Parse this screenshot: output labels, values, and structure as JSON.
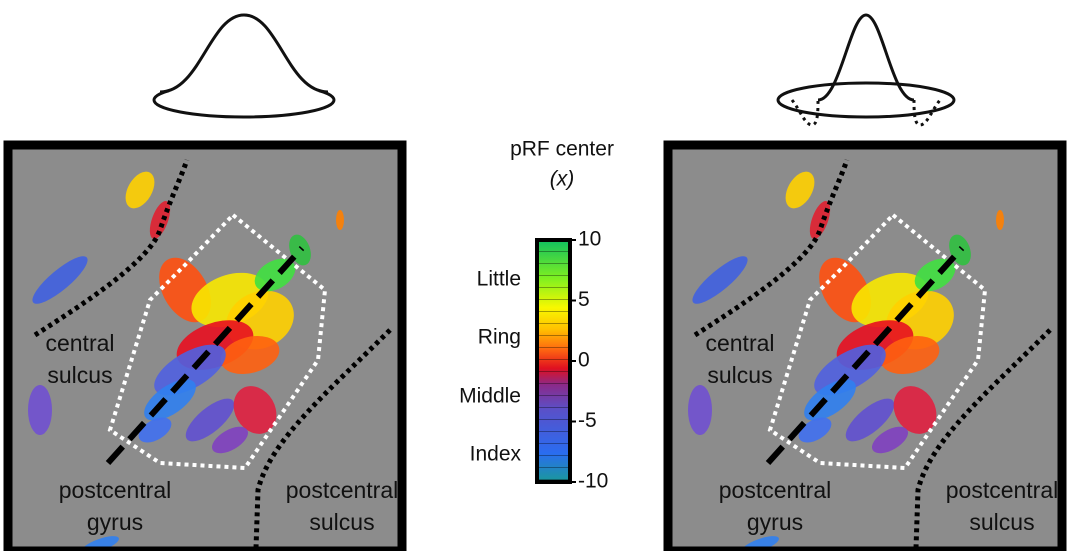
{
  "colorbar": {
    "title": "pRF center",
    "subtitle": "(x)",
    "lim": [
      -10,
      10
    ],
    "ticks": [
      10,
      5,
      0,
      -5,
      -10
    ],
    "fingers": [
      "Little",
      "Ring",
      "Middle",
      "Index"
    ]
  },
  "panels": [
    {
      "central_sulcus": [
        "central",
        "sulcus"
      ],
      "postcentral_gyrus": [
        "postcentral",
        "gyrus"
      ],
      "postcentral_sulcus": [
        "postcentral",
        "sulcus"
      ]
    },
    {
      "central_sulcus": [
        "central",
        "sulcus"
      ],
      "postcentral_gyrus": [
        "postcentral",
        "gyrus"
      ],
      "postcentral_sulcus": [
        "postcentral",
        "sulcus"
      ]
    }
  ]
}
